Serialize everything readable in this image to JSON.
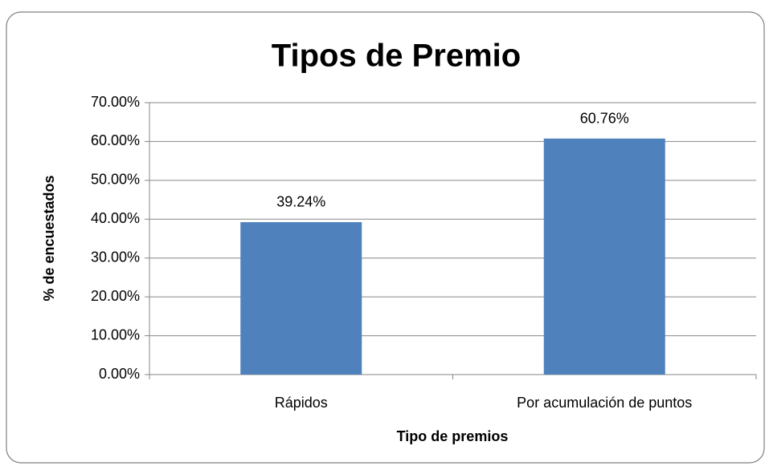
{
  "chart_data": {
    "type": "bar",
    "title": "Tipos de Premio",
    "x_label": "Tipo de premios",
    "y_label": "% de encuestados",
    "categories": [
      "Rápidos",
      "Por acumulación de puntos"
    ],
    "values": [
      39.24,
      60.76
    ],
    "value_labels": [
      "39.24%",
      "60.76%"
    ],
    "color": "#4f81bd",
    "ylim": [
      0,
      70
    ],
    "yticks": [
      {
        "value": 0,
        "label": "0.00%"
      },
      {
        "value": 10,
        "label": "10.00%"
      },
      {
        "value": 20,
        "label": "20.00%"
      },
      {
        "value": 30,
        "label": "30.00%"
      },
      {
        "value": 40,
        "label": "40.00%"
      },
      {
        "value": 50,
        "label": "50.00%"
      },
      {
        "value": 60,
        "label": "60.00%"
      },
      {
        "value": 70,
        "label": "70.00%"
      }
    ],
    "grid": true
  }
}
